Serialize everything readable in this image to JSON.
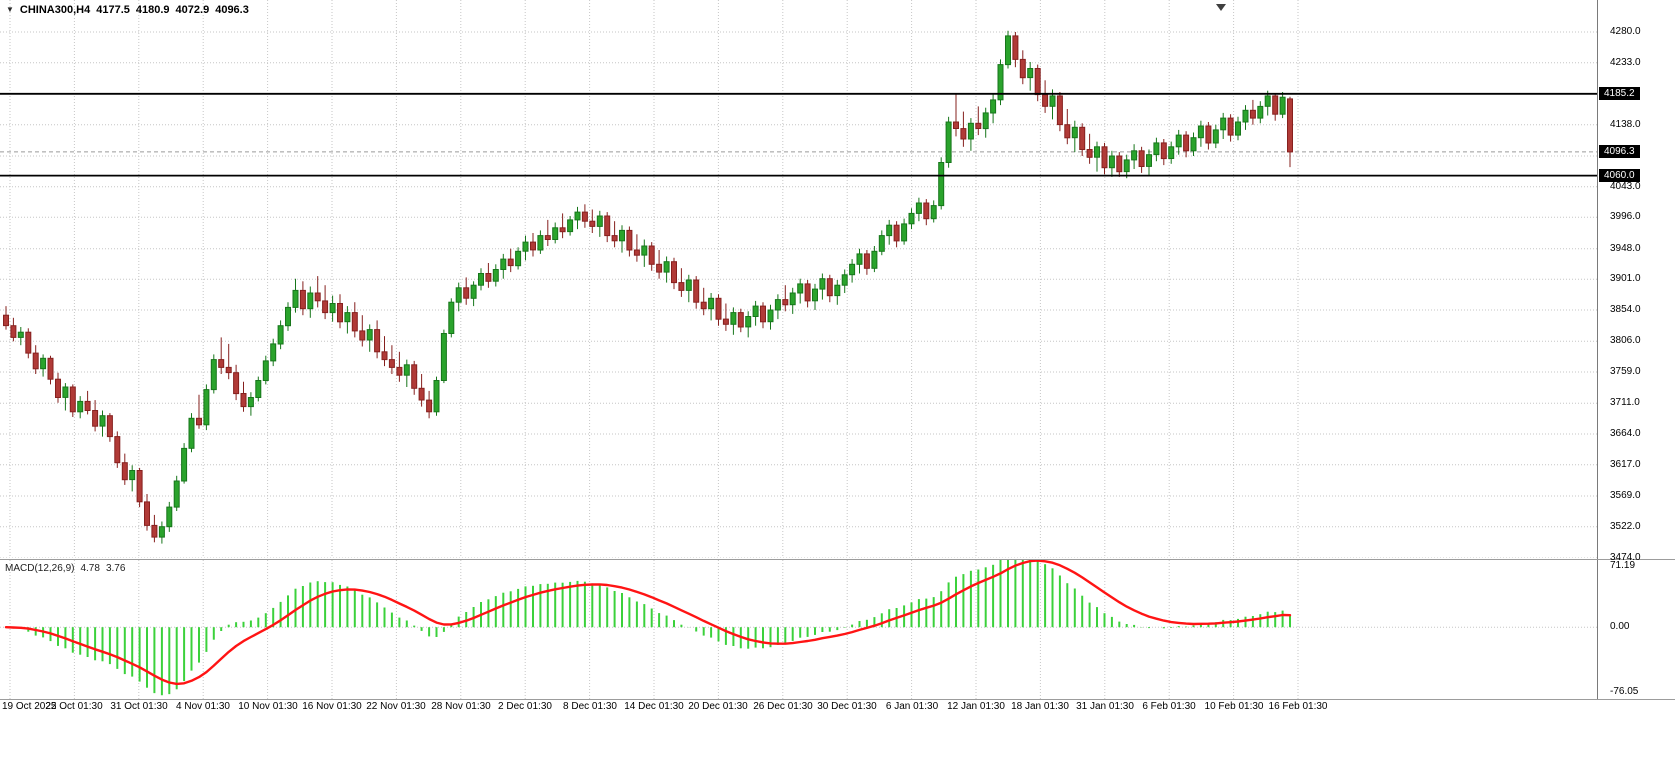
{
  "title_bar": {
    "dropdown_icon": "▼",
    "symbol": "CHINA300,H4",
    "open": "4177.5",
    "high": "4180.9",
    "low": "4072.9",
    "close": "4096.3"
  },
  "colors": {
    "bull": "#2aa32c",
    "bull_border": "#17761b",
    "bear": "#b03a37",
    "bear_border": "#86201e",
    "grid": "#c6c6c6",
    "hline": "#000000",
    "current_price_line": "#9a9a9a",
    "macd_hist": "#3bd13b",
    "macd_signal": "#ff1414",
    "tag_bg": "#000000",
    "tag_fg": "#ffffff"
  },
  "chart_data": {
    "type": "candlestick",
    "symbol": "CHINA300",
    "timeframe": "H4",
    "last_bar": {
      "open": 4177.5,
      "high": 4180.9,
      "low": 4072.9,
      "close": 4096.3
    },
    "current_price": 4096.3,
    "hlines": [
      4185.2,
      4060.0
    ],
    "price_gridlines": [
      4280,
      4233,
      4185,
      4138,
      4090,
      4043,
      3996,
      3948,
      3901,
      3854,
      3806,
      3759,
      3711,
      3664,
      3617,
      3569,
      3522,
      3474
    ],
    "price_ticks": [
      {
        "text": "4280.0",
        "value": 4280
      },
      {
        "text": "4233.0",
        "value": 4233
      },
      {
        "text": "4138.0",
        "value": 4138
      },
      {
        "text": "4043.0",
        "value": 4043
      },
      {
        "text": "3996.0",
        "value": 3996
      },
      {
        "text": "3948.0",
        "value": 3948
      },
      {
        "text": "3901.0",
        "value": 3901
      },
      {
        "text": "3854.0",
        "value": 3854
      },
      {
        "text": "3806.0",
        "value": 3806
      },
      {
        "text": "3759.0",
        "value": 3759
      },
      {
        "text": "3711.0",
        "value": 3711
      },
      {
        "text": "3664.0",
        "value": 3664
      },
      {
        "text": "3617.0",
        "value": 3617
      },
      {
        "text": "3569.0",
        "value": 3569
      },
      {
        "text": "3522.0",
        "value": 3522
      },
      {
        "text": "3474.0",
        "value": 3474
      }
    ],
    "price_tags": [
      {
        "text": "4185.2",
        "value": 4185.2,
        "name": "price-tag-level-4185"
      },
      {
        "text": "4096.3",
        "value": 4096.3,
        "name": "price-tag-current-price"
      },
      {
        "text": "4060.0",
        "value": 4060.0,
        "name": "price-tag-level-4060"
      }
    ],
    "time_labels": [
      "19 Oct 2022",
      "25 Oct 01:30",
      "31 Oct 01:30",
      "4 Nov 01:30",
      "10 Nov 01:30",
      "16 Nov 01:30",
      "22 Nov 01:30",
      "28 Nov 01:30",
      "2 Dec 01:30",
      "8 Dec 01:30",
      "14 Dec 01:30",
      "20 Dec 01:30",
      "26 Dec 01:30",
      "30 Dec 01:30",
      "6 Jan 01:30",
      "12 Jan 01:30",
      "18 Jan 01:30",
      "31 Jan 01:30",
      "6 Feb 01:30",
      "10 Feb 01:30",
      "16 Feb 01:30"
    ],
    "y_axis_range": [
      3474.0,
      4280.0
    ],
    "candles": [
      [
        3846,
        3860,
        3824,
        3830
      ],
      [
        3830,
        3842,
        3806,
        3812
      ],
      [
        3812,
        3828,
        3800,
        3820
      ],
      [
        3820,
        3826,
        3780,
        3788
      ],
      [
        3788,
        3800,
        3756,
        3764
      ],
      [
        3764,
        3786,
        3752,
        3780
      ],
      [
        3780,
        3784,
        3740,
        3748
      ],
      [
        3748,
        3758,
        3712,
        3720
      ],
      [
        3720,
        3742,
        3700,
        3736
      ],
      [
        3736,
        3740,
        3690,
        3698
      ],
      [
        3698,
        3722,
        3688,
        3714
      ],
      [
        3714,
        3730,
        3694,
        3700
      ],
      [
        3700,
        3716,
        3668,
        3676
      ],
      [
        3676,
        3700,
        3660,
        3692
      ],
      [
        3692,
        3696,
        3652,
        3660
      ],
      [
        3660,
        3668,
        3612,
        3620
      ],
      [
        3620,
        3634,
        3586,
        3594
      ],
      [
        3594,
        3616,
        3576,
        3608
      ],
      [
        3608,
        3612,
        3552,
        3560
      ],
      [
        3560,
        3572,
        3516,
        3524
      ],
      [
        3524,
        3540,
        3498,
        3506
      ],
      [
        3506,
        3530,
        3496,
        3522
      ],
      [
        3522,
        3560,
        3514,
        3552
      ],
      [
        3552,
        3600,
        3546,
        3592
      ],
      [
        3592,
        3650,
        3588,
        3642
      ],
      [
        3642,
        3696,
        3636,
        3688
      ],
      [
        3688,
        3724,
        3672,
        3678
      ],
      [
        3678,
        3740,
        3670,
        3732
      ],
      [
        3732,
        3786,
        3726,
        3778
      ],
      [
        3778,
        3812,
        3756,
        3766
      ],
      [
        3766,
        3802,
        3748,
        3758
      ],
      [
        3758,
        3770,
        3716,
        3726
      ],
      [
        3726,
        3744,
        3698,
        3706
      ],
      [
        3706,
        3728,
        3692,
        3720
      ],
      [
        3720,
        3752,
        3714,
        3746
      ],
      [
        3746,
        3784,
        3740,
        3776
      ],
      [
        3776,
        3810,
        3768,
        3802
      ],
      [
        3802,
        3838,
        3794,
        3830
      ],
      [
        3830,
        3866,
        3822,
        3858
      ],
      [
        3858,
        3902,
        3850,
        3884
      ],
      [
        3884,
        3898,
        3846,
        3856
      ],
      [
        3856,
        3890,
        3842,
        3880
      ],
      [
        3880,
        3906,
        3858,
        3868
      ],
      [
        3868,
        3892,
        3840,
        3850
      ],
      [
        3850,
        3876,
        3836,
        3864
      ],
      [
        3864,
        3878,
        3826,
        3836
      ],
      [
        3836,
        3860,
        3818,
        3850
      ],
      [
        3850,
        3866,
        3812,
        3822
      ],
      [
        3822,
        3846,
        3798,
        3808
      ],
      [
        3808,
        3832,
        3790,
        3824
      ],
      [
        3824,
        3838,
        3780,
        3790
      ],
      [
        3790,
        3814,
        3768,
        3778
      ],
      [
        3778,
        3800,
        3756,
        3766
      ],
      [
        3766,
        3790,
        3744,
        3754
      ],
      [
        3754,
        3778,
        3736,
        3770
      ],
      [
        3770,
        3776,
        3724,
        3734
      ],
      [
        3734,
        3756,
        3706,
        3716
      ],
      [
        3716,
        3730,
        3688,
        3698
      ],
      [
        3698,
        3752,
        3692,
        3746
      ],
      [
        3746,
        3824,
        3742,
        3818
      ],
      [
        3818,
        3872,
        3812,
        3866
      ],
      [
        3866,
        3896,
        3852,
        3888
      ],
      [
        3888,
        3904,
        3862,
        3872
      ],
      [
        3872,
        3898,
        3860,
        3892
      ],
      [
        3892,
        3918,
        3884,
        3910
      ],
      [
        3910,
        3926,
        3888,
        3898
      ],
      [
        3898,
        3924,
        3890,
        3916
      ],
      [
        3916,
        3940,
        3902,
        3932
      ],
      [
        3932,
        3948,
        3912,
        3922
      ],
      [
        3922,
        3950,
        3916,
        3944
      ],
      [
        3944,
        3968,
        3930,
        3958
      ],
      [
        3958,
        3972,
        3936,
        3946
      ],
      [
        3946,
        3976,
        3940,
        3968
      ],
      [
        3968,
        3992,
        3952,
        3962
      ],
      [
        3962,
        3988,
        3956,
        3980
      ],
      [
        3980,
        4002,
        3964,
        3974
      ],
      [
        3974,
        3998,
        3968,
        3992
      ],
      [
        3992,
        4012,
        3978,
        4004
      ],
      [
        4004,
        4016,
        3980,
        3990
      ],
      [
        3990,
        4008,
        3972,
        3982
      ],
      [
        3982,
        4006,
        3966,
        3998
      ],
      [
        3998,
        4004,
        3958,
        3968
      ],
      [
        3968,
        3990,
        3950,
        3960
      ],
      [
        3960,
        3984,
        3942,
        3976
      ],
      [
        3976,
        3982,
        3936,
        3946
      ],
      [
        3946,
        3970,
        3928,
        3938
      ],
      [
        3938,
        3962,
        3920,
        3952
      ],
      [
        3952,
        3958,
        3914,
        3924
      ],
      [
        3924,
        3946,
        3902,
        3912
      ],
      [
        3912,
        3936,
        3896,
        3928
      ],
      [
        3928,
        3934,
        3886,
        3896
      ],
      [
        3896,
        3918,
        3874,
        3884
      ],
      [
        3884,
        3908,
        3866,
        3900
      ],
      [
        3900,
        3906,
        3856,
        3866
      ],
      [
        3866,
        3888,
        3846,
        3856
      ],
      [
        3856,
        3880,
        3838,
        3872
      ],
      [
        3872,
        3878,
        3830,
        3840
      ],
      [
        3840,
        3864,
        3822,
        3832
      ],
      [
        3832,
        3858,
        3816,
        3850
      ],
      [
        3850,
        3856,
        3820,
        3828
      ],
      [
        3828,
        3852,
        3812,
        3844
      ],
      [
        3844,
        3868,
        3830,
        3860
      ],
      [
        3860,
        3866,
        3826,
        3836
      ],
      [
        3836,
        3862,
        3824,
        3854
      ],
      [
        3854,
        3878,
        3840,
        3870
      ],
      [
        3870,
        3892,
        3852,
        3862
      ],
      [
        3862,
        3888,
        3848,
        3880
      ],
      [
        3880,
        3902,
        3864,
        3894
      ],
      [
        3894,
        3900,
        3858,
        3868
      ],
      [
        3868,
        3894,
        3854,
        3886
      ],
      [
        3886,
        3910,
        3870,
        3902
      ],
      [
        3902,
        3908,
        3866,
        3876
      ],
      [
        3876,
        3900,
        3862,
        3892
      ],
      [
        3892,
        3916,
        3880,
        3908
      ],
      [
        3908,
        3932,
        3896,
        3924
      ],
      [
        3924,
        3948,
        3910,
        3940
      ],
      [
        3940,
        3946,
        3908,
        3918
      ],
      [
        3918,
        3952,
        3912,
        3944
      ],
      [
        3944,
        3976,
        3938,
        3968
      ],
      [
        3968,
        3992,
        3954,
        3984
      ],
      [
        3984,
        3990,
        3950,
        3960
      ],
      [
        3960,
        3994,
        3954,
        3986
      ],
      [
        3986,
        4010,
        3978,
        4002
      ],
      [
        4002,
        4026,
        3990,
        4018
      ],
      [
        4018,
        4024,
        3984,
        3994
      ],
      [
        3994,
        4022,
        3988,
        4014
      ],
      [
        4014,
        4088,
        4008,
        4080
      ],
      [
        4080,
        4150,
        4072,
        4142
      ],
      [
        4142,
        4186,
        4120,
        4132
      ],
      [
        4132,
        4158,
        4104,
        4116
      ],
      [
        4116,
        4148,
        4098,
        4140
      ],
      [
        4140,
        4166,
        4122,
        4132
      ],
      [
        4132,
        4164,
        4118,
        4156
      ],
      [
        4156,
        4186,
        4140,
        4176
      ],
      [
        4176,
        4238,
        4168,
        4230
      ],
      [
        4230,
        4282,
        4224,
        4274
      ],
      [
        4274,
        4280,
        4226,
        4238
      ],
      [
        4238,
        4252,
        4200,
        4210
      ],
      [
        4210,
        4234,
        4190,
        4224
      ],
      [
        4224,
        4230,
        4174,
        4184
      ],
      [
        4184,
        4206,
        4156,
        4166
      ],
      [
        4166,
        4192,
        4146,
        4182
      ],
      [
        4182,
        4188,
        4128,
        4138
      ],
      [
        4138,
        4162,
        4108,
        4118
      ],
      [
        4118,
        4144,
        4096,
        4134
      ],
      [
        4134,
        4140,
        4090,
        4100
      ],
      [
        4100,
        4124,
        4078,
        4088
      ],
      [
        4088,
        4112,
        4066,
        4104
      ],
      [
        4104,
        4110,
        4062,
        4072
      ],
      [
        4072,
        4098,
        4058,
        4090
      ],
      [
        4090,
        4096,
        4058,
        4066
      ],
      [
        4066,
        4092,
        4056,
        4084
      ],
      [
        4084,
        4108,
        4070,
        4098
      ],
      [
        4098,
        4104,
        4064,
        4074
      ],
      [
        4074,
        4100,
        4060,
        4092
      ],
      [
        4092,
        4118,
        4082,
        4110
      ],
      [
        4110,
        4116,
        4076,
        4086
      ],
      [
        4086,
        4112,
        4078,
        4104
      ],
      [
        4104,
        4130,
        4092,
        4122
      ],
      [
        4122,
        4128,
        4088,
        4098
      ],
      [
        4098,
        4126,
        4090,
        4118
      ],
      [
        4118,
        4144,
        4104,
        4136
      ],
      [
        4136,
        4142,
        4100,
        4110
      ],
      [
        4110,
        4138,
        4102,
        4130
      ],
      [
        4130,
        4156,
        4116,
        4148
      ],
      [
        4148,
        4154,
        4112,
        4122
      ],
      [
        4122,
        4150,
        4114,
        4142
      ],
      [
        4142,
        4168,
        4130,
        4160
      ],
      [
        4160,
        4176,
        4138,
        4148
      ],
      [
        4148,
        4174,
        4140,
        4166
      ],
      [
        4166,
        4190,
        4152,
        4182
      ],
      [
        4182,
        4186,
        4144,
        4154
      ],
      [
        4154,
        4188,
        4148,
        4180
      ],
      [
        4177.5,
        4180.9,
        4072.9,
        4096.3
      ]
    ],
    "indicator": {
      "type": "MACD",
      "label": "MACD(12,26,9)",
      "params": [
        12,
        26,
        9
      ],
      "value_main": "4.78",
      "value_signal": "3.76",
      "current": [
        4.78,
        3.76
      ],
      "y_max": 71.19,
      "y_min": -76.05,
      "axis_labels": [
        {
          "text": "71.19",
          "value": 71.19
        },
        {
          "text": "0.00",
          "value": 0
        },
        {
          "text": "-76.05",
          "value": -76.05
        }
      ]
    }
  }
}
